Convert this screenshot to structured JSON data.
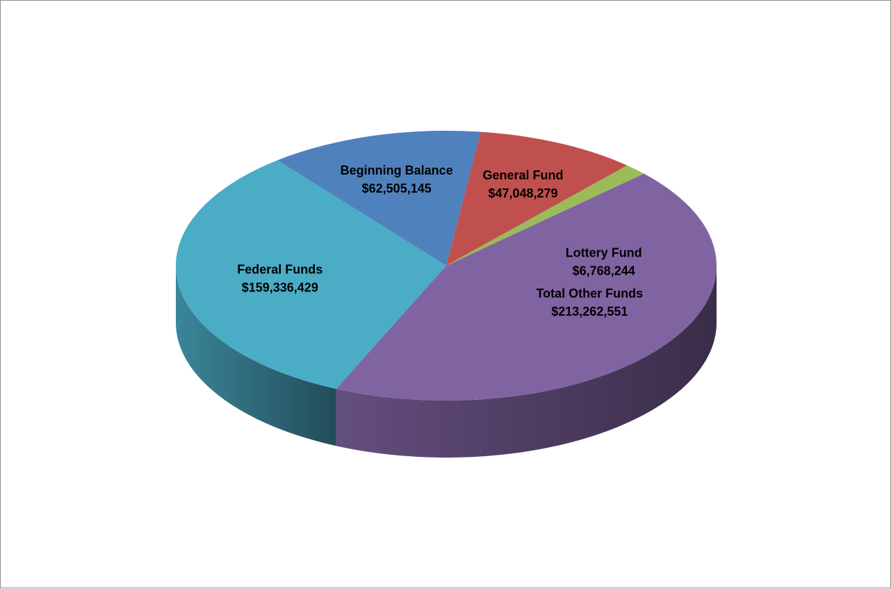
{
  "chart_data": {
    "type": "pie",
    "title": "",
    "three_d": true,
    "legend": "none",
    "slices": [
      {
        "name": "Total Other Funds",
        "value": 213262551,
        "value_label": "$213,262,551",
        "color": "#8064A2"
      },
      {
        "name": "Federal Funds",
        "value": 159336429,
        "value_label": "$159,336,429",
        "color": "#4BACC6"
      },
      {
        "name": "Beginning Balance",
        "value": 62505145,
        "value_label": "$62,505,145",
        "color": "#4F81BD"
      },
      {
        "name": "General Fund",
        "value": 47048279,
        "value_label": "$47,048,279",
        "color": "#C0504D"
      },
      {
        "name": "Lottery Fund",
        "value": 6768244,
        "value_label": "$6,768,244",
        "color": "#9BBB59"
      }
    ]
  }
}
